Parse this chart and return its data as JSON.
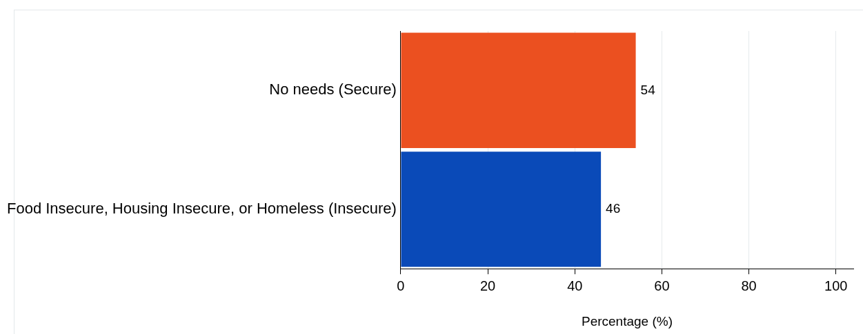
{
  "chart_data": {
    "type": "bar",
    "orientation": "horizontal",
    "categories": [
      "No needs (Secure)",
      "Food Insecure, Housing Insecure, or Homeless (Insecure)"
    ],
    "values": [
      54,
      46
    ],
    "colors": [
      "#eb5020",
      "#0a4ab8"
    ],
    "xlim": [
      0,
      104
    ],
    "xticks": [
      0,
      20,
      40,
      60,
      80,
      100
    ],
    "xlabel": "Percentage (%)",
    "grid": "x",
    "data_labels": true,
    "legend": false
  }
}
